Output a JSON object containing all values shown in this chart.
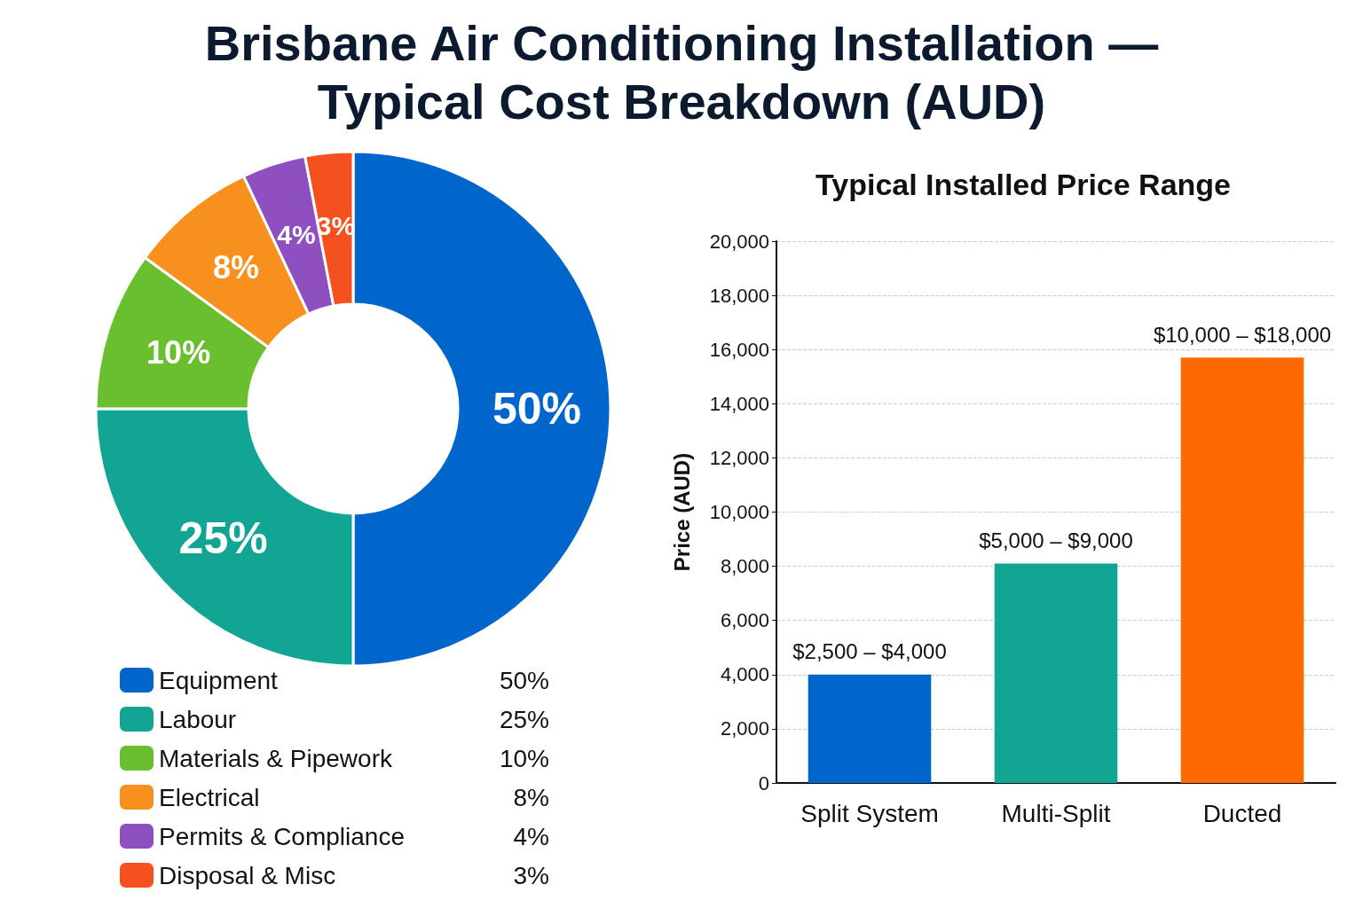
{
  "chart_data": [
    {
      "type": "donut",
      "title": "Brisbane Air Conditioning Installation —\nTypical Cost Breakdown (AUD)",
      "categories": [
        "Equipment",
        "Labour",
        "Materials & Pipework",
        "Electrical",
        "Permits & Compliance",
        "Disposal & Misc"
      ],
      "values": [
        50,
        25,
        10,
        8,
        4,
        3
      ],
      "value_labels": [
        "50%",
        "25%",
        "10%",
        "8%",
        "4%",
        "3%"
      ],
      "colors": [
        "#0066cc",
        "#12a594",
        "#6abf2e",
        "#f7901e",
        "#8e4fc0",
        "#f4511e"
      ],
      "legend": "bottom"
    },
    {
      "type": "bar",
      "title": "Typical Installed Price Range",
      "ylabel": "Price (AUD)",
      "categories": [
        "Split System",
        "Multi-Split",
        "Ducted"
      ],
      "values": [
        4000,
        8100,
        15700
      ],
      "colors": [
        "#0066cc",
        "#12a594",
        "#ff6a00"
      ],
      "annotations": [
        {
          "text": "$2,500 – $4,000",
          "x": "Split System",
          "y": 4000
        },
        {
          "text": "$5,000 – $9,000",
          "x": "Multi-Split",
          "y": 8100
        },
        {
          "text": "$10,000 – $18,000",
          "x": "Ducted",
          "y": 15700
        }
      ],
      "ylim": [
        0,
        20000
      ],
      "yticks": [
        0,
        {
          "value": 2000,
          "label": "2,000"
        },
        {
          "value": 4000,
          "label": "4,000"
        },
        {
          "value": 6000,
          "label": "6,000"
        },
        {
          "value": 8000,
          "label": "8,000"
        },
        {
          "value": 10000,
          "label": "10,000"
        },
        {
          "value": 12000,
          "label": "12,000"
        },
        {
          "value": 14000,
          "label": "14,000"
        },
        {
          "value": 16000,
          "label": "16,000"
        },
        {
          "value": 18000,
          "label": "18,000"
        },
        {
          "value": 20000,
          "label": "20,000"
        }
      ],
      "grid": "y"
    }
  ]
}
